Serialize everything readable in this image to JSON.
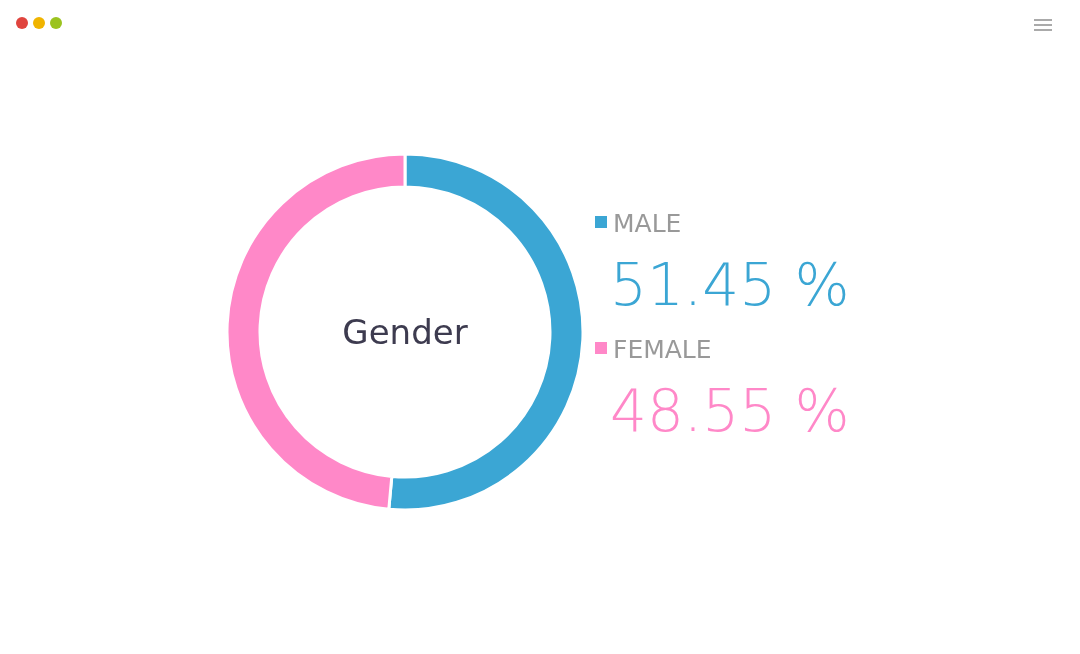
{
  "chart_data": {
    "type": "donut",
    "title": "Gender",
    "categories": [
      "MALE",
      "FEMALE"
    ],
    "values": [
      51.45,
      48.55
    ],
    "colors": [
      "#3ba6d4",
      "#ff88c8"
    ],
    "value_labels": [
      "51.45 %",
      "48.55 %"
    ],
    "legend": "right"
  }
}
